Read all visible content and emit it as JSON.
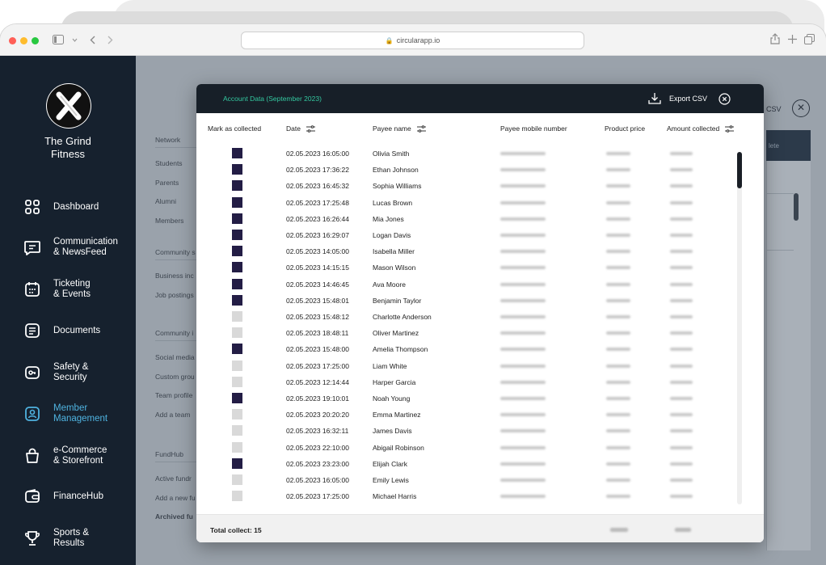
{
  "browser": {
    "url": "circularapp.io"
  },
  "sidebar": {
    "brand": [
      "The Grind",
      "Fitness"
    ],
    "items": [
      {
        "label": [
          "Dashboard"
        ],
        "icon": "dashboard-grid-icon",
        "active": false
      },
      {
        "label": [
          "Communication",
          "& NewsFeed"
        ],
        "icon": "chat-bubble-icon",
        "active": false
      },
      {
        "label": [
          "Ticketing",
          "& Events"
        ],
        "icon": "calendar-icon",
        "active": false
      },
      {
        "label": [
          "Documents"
        ],
        "icon": "document-icon",
        "active": false
      },
      {
        "label": [
          "Safety &",
          "Security"
        ],
        "icon": "key-icon",
        "active": false
      },
      {
        "label": [
          "Member",
          "Management"
        ],
        "icon": "member-badge-icon",
        "active": true
      },
      {
        "label": [
          "e-Commerce",
          "& Storefront"
        ],
        "icon": "shopping-bag-icon",
        "active": false
      },
      {
        "label": [
          "FinanceHub"
        ],
        "icon": "wallet-icon",
        "active": false
      },
      {
        "label": [
          "Sports &",
          "Results"
        ],
        "icon": "trophy-icon",
        "active": false
      }
    ]
  },
  "background_page": {
    "labels": [
      "Network",
      "Students",
      "Parents",
      "Alumni",
      "Members",
      "Community s",
      "Business inc",
      "Job postings",
      "Community i",
      "Social media",
      "Custom grou",
      "Team profile",
      "Add a team",
      "FundHub",
      "Active fundr",
      "Add a new fu",
      "Archived fu"
    ],
    "csv_label": "CSV",
    "panel_header": "lete"
  },
  "modal": {
    "title": "Account Data (September 2023)",
    "export_label": "Export CSV",
    "columns": {
      "mark": "Mark as collected",
      "date": "Date",
      "payee": "Payee name",
      "mobile": "Payee mobile number",
      "price": "Product price",
      "amount": "Amount collected"
    },
    "rows": [
      {
        "collected": true,
        "date": "02.05.2023 16:05:00",
        "name": "Olivia Smith"
      },
      {
        "collected": true,
        "date": "02.05.2023 17:36:22",
        "name": "Ethan Johnson"
      },
      {
        "collected": true,
        "date": "02.05.2023 16:45:32",
        "name": "Sophia Williams"
      },
      {
        "collected": true,
        "date": "02.05.2023 17:25:48",
        "name": "Lucas Brown"
      },
      {
        "collected": true,
        "date": "02.05.2023 16:26:44",
        "name": "Mia Jones"
      },
      {
        "collected": true,
        "date": "02.05.2023 16:29:07",
        "name": "Logan Davis"
      },
      {
        "collected": true,
        "date": "02.05.2023 14:05:00",
        "name": "Isabella Miller"
      },
      {
        "collected": true,
        "date": "02.05.2023 14:15:15",
        "name": "Mason Wilson"
      },
      {
        "collected": true,
        "date": "02.05.2023 14:46:45",
        "name": "Ava Moore"
      },
      {
        "collected": true,
        "date": "02.05.2023 15:48:01",
        "name": "Benjamin Taylor"
      },
      {
        "collected": false,
        "date": "02.05.2023 15:48:12",
        "name": "Charlotte Anderson"
      },
      {
        "collected": false,
        "date": "02.05.2023 18:48:11",
        "name": "Oliver Martinez"
      },
      {
        "collected": true,
        "date": "02.05.2023 15:48:00",
        "name": "Amelia Thompson"
      },
      {
        "collected": false,
        "date": "02.05.2023 17:25:00",
        "name": "Liam White"
      },
      {
        "collected": false,
        "date": "02.05.2023 12:14:44",
        "name": "Harper Garcia"
      },
      {
        "collected": true,
        "date": "02.05.2023 19:10:01",
        "name": "Noah Young"
      },
      {
        "collected": false,
        "date": "02.05.2023 20:20:20",
        "name": "Emma Martinez"
      },
      {
        "collected": false,
        "date": "02.05.2023 16:32:11",
        "name": "James Davis"
      },
      {
        "collected": false,
        "date": "02.05.2023 22:10:00",
        "name": "Abigail Robinson"
      },
      {
        "collected": true,
        "date": "02.05.2023 23:23:00",
        "name": "Elijah Clark"
      },
      {
        "collected": false,
        "date": "02.05.2023 16:05:00",
        "name": "Emily Lewis"
      },
      {
        "collected": false,
        "date": "02.05.2023 17:25:00",
        "name": "Michael Harris"
      }
    ],
    "footer": {
      "total_label": "Total collect: 15"
    },
    "colors": {
      "header_bg": "#171f28",
      "title": "#34c8a0",
      "checked": "#231d45",
      "unchecked": "#d9d9d9"
    }
  },
  "colors": {
    "sidebar_bg": "#16212e",
    "active_nav": "#4fb3e0",
    "overlay": "#9aa2ab"
  }
}
